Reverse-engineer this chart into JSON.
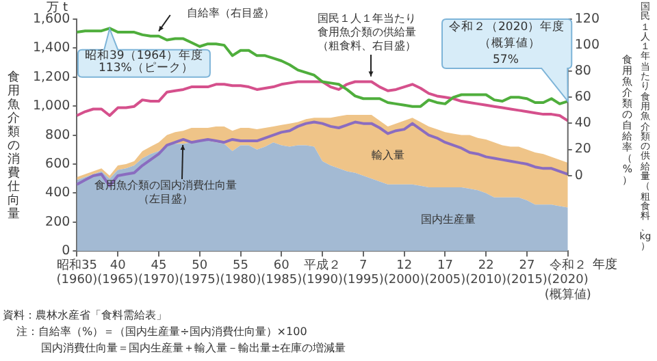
{
  "chart_data": {
    "type": "area",
    "stacked": true,
    "categories": [
      "昭和35\n(1960)",
      null,
      null,
      null,
      null,
      "40\n(1965)",
      null,
      null,
      null,
      null,
      "45\n(1970)",
      null,
      null,
      null,
      null,
      "50\n(1975)",
      null,
      null,
      null,
      null,
      "55\n(1980)",
      null,
      null,
      null,
      null,
      "60\n(1985)",
      null,
      null,
      null,
      null,
      "平成２\n(1990)",
      null,
      null,
      null,
      null,
      "7\n(1995)",
      null,
      null,
      null,
      null,
      "12\n(2000)",
      null,
      null,
      null,
      null,
      "17\n(2005)",
      null,
      null,
      null,
      null,
      "22\n(2010)",
      null,
      null,
      null,
      null,
      "27\n(2015)",
      null,
      null,
      null,
      null,
      "令和２\n(2020)\n(概算値)"
    ],
    "series": [
      {
        "name": "国内生産量",
        "color": "#a3bad3",
        "values": [
          490,
          510,
          530,
          550,
          500,
          560,
          570,
          590,
          640,
          670,
          690,
          730,
          740,
          740,
          750,
          760,
          760,
          750,
          740,
          690,
          730,
          730,
          700,
          720,
          750,
          730,
          720,
          730,
          730,
          720,
          620,
          590,
          570,
          550,
          540,
          520,
          500,
          480,
          460,
          460,
          460,
          460,
          450,
          440,
          440,
          440,
          440,
          440,
          430,
          420,
          400,
          370,
          370,
          370,
          370,
          350,
          320,
          320,
          320,
          310,
          300
        ]
      },
      {
        "name": "輸入量",
        "color": "#efc488",
        "values": [
          20,
          20,
          20,
          20,
          20,
          30,
          30,
          30,
          50,
          50,
          60,
          70,
          80,
          90,
          100,
          90,
          90,
          110,
          120,
          140,
          120,
          120,
          140,
          130,
          110,
          140,
          160,
          160,
          180,
          200,
          300,
          330,
          360,
          390,
          400,
          420,
          440,
          420,
          400,
          420,
          440,
          460,
          440,
          420,
          400,
          380,
          370,
          360,
          370,
          360,
          370,
          380,
          360,
          350,
          350,
          350,
          360,
          350,
          330,
          320,
          310
        ]
      },
      {
        "name": "食用魚介類の国内消費仕向量（左目盛）",
        "type": "line",
        "color": "#8a6cc0",
        "values": [
          460,
          490,
          520,
          530,
          450,
          520,
          530,
          540,
          590,
          630,
          670,
          730,
          750,
          770,
          750,
          760,
          770,
          760,
          750,
          770,
          760,
          760,
          760,
          780,
          800,
          820,
          830,
          860,
          880,
          890,
          880,
          860,
          850,
          870,
          890,
          880,
          880,
          850,
          810,
          830,
          840,
          880,
          840,
          800,
          780,
          750,
          730,
          710,
          680,
          670,
          650,
          640,
          630,
          620,
          610,
          600,
          580,
          570,
          570,
          550,
          530
        ]
      },
      {
        "name": "自給率（右目盛）",
        "type": "line",
        "axis": "y2",
        "color": "#4fae3c",
        "values": [
          110,
          111,
          111,
          111,
          113,
          110,
          110,
          110,
          108,
          107,
          107,
          104,
          105,
          105,
          102,
          99,
          101,
          101,
          100,
          92,
          96,
          96,
          92,
          92,
          90,
          88,
          85,
          81,
          79,
          77,
          72,
          71,
          70,
          66,
          61,
          59,
          59,
          59,
          56,
          55,
          54,
          53,
          53,
          58,
          56,
          55,
          60,
          62,
          62,
          62,
          62,
          58,
          57,
          60,
          60,
          59,
          56,
          56,
          59,
          55,
          57
        ]
      },
      {
        "name": "国民１人１年当たり食用魚介類の供給量（粗食料、右目盛）",
        "type": "line",
        "axis": "y2",
        "color": "#d5508c",
        "values": [
          46,
          49,
          51,
          51,
          46,
          52,
          52,
          53,
          58,
          57,
          57,
          64,
          65,
          66,
          68,
          68,
          68,
          70,
          70,
          69,
          69,
          68,
          66,
          67,
          68,
          70,
          71,
          72,
          72,
          72,
          72,
          68,
          66,
          70,
          72,
          72,
          72,
          68,
          65,
          66,
          68,
          70,
          67,
          63,
          61,
          60,
          59,
          57,
          56,
          55,
          54,
          53,
          52,
          51,
          50,
          49,
          48,
          47,
          47,
          46,
          42
        ]
      }
    ],
    "xlabel": "年度",
    "ylim": [
      0,
      1600
    ],
    "yticks": [
      0,
      {
        "value": 200,
        "label": "200"
      },
      {
        "value": 400,
        "label": "400"
      },
      {
        "value": 600,
        "label": "600"
      },
      {
        "value": 800,
        "label": "800"
      },
      {
        "value": 1000,
        "label": "1,000"
      },
      {
        "value": 1200,
        "label": "1,200"
      },
      {
        "value": 1400,
        "label": "1,400"
      },
      {
        "value": 1600,
        "label": "1,600"
      }
    ],
    "ylabel": "食用魚介類の消費仕向量",
    "y2lim": [
      -58,
      120
    ],
    "y2ticks": [
      0,
      20,
      40,
      60,
      80,
      100,
      120
    ],
    "y2label": "国民１人１年当たり食用魚介類の供給量（粗食料、kg）",
    "grid": false,
    "legend": false,
    "annotations": [
      "万 t",
      "昭和39（1964）年度",
      "113%（ピーク）",
      "令和２（2020）年度",
      "（概算値）",
      "57%",
      "食用魚介類の自給率（%）",
      "資料：農林水産省「食料需給表」",
      "注：自給率（%）＝（国内生産量÷国内消費仕向量）×100",
      "国内消費仕向量＝国内生産量＋輸入量－輸出量±在庫の増減量"
    ]
  }
}
